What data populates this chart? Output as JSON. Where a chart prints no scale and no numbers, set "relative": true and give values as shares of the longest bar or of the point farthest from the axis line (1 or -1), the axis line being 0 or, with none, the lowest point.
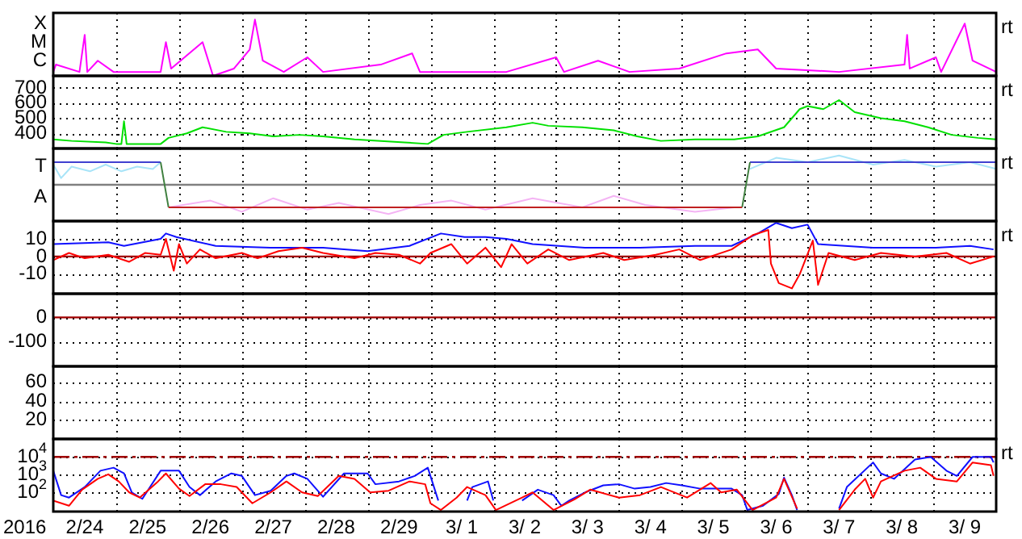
{
  "chart_data": [
    {
      "type": "line",
      "relative": true,
      "grid": "x",
      "tick_labels": "y",
      "xlim": [
        "2016-02-24",
        "2016-03-10"
      ],
      "xticks": [
        {
          "value": "2016-02-25",
          "label": null
        },
        {
          "value": "2016-02-26",
          "label": null
        },
        {
          "value": "2016-02-27",
          "label": null
        },
        {
          "value": "2016-02-28",
          "label": null
        },
        {
          "value": "2016-02-29",
          "label": null
        },
        {
          "value": "2016-03-01",
          "label": null
        },
        {
          "value": "2016-03-02",
          "label": null
        },
        {
          "value": "2016-03-03",
          "label": null
        },
        {
          "value": "2016-03-04",
          "label": null
        },
        {
          "value": "2016-03-05",
          "label": null
        },
        {
          "value": "2016-03-06",
          "label": null
        },
        {
          "value": "2016-03-07",
          "label": null
        },
        {
          "value": "2016-03-08",
          "label": null
        },
        {
          "value": "2016-03-09",
          "label": null
        }
      ],
      "annotations": [
        "X",
        "M",
        "C",
        "rt"
      ],
      "series": [
        {
          "color": "#ff00ff",
          "x": [
            "2016-02-24T00:00",
            "2016-02-24T01:00",
            "2016-02-24T10:00",
            "2016-02-24T12:00",
            "2016-02-24T13:00",
            "2016-02-24T17:00",
            "2016-02-24T23:00",
            "2016-02-25T17:00",
            "2016-02-25T19:00",
            "2016-02-25T21:00",
            "2016-02-26T09:00",
            "2016-02-26T13:00",
            "2016-02-26T21:00",
            "2016-02-27T03:00",
            "2016-02-27T05:00",
            "2016-02-27T08:00",
            "2016-02-27T16:00",
            "2016-02-28T01:00",
            "2016-02-28T07:00",
            "2016-02-29T05:00",
            "2016-02-29T17:00",
            "2016-02-29T20:00",
            "2016-03-01T21:00",
            "2016-03-02T05:00",
            "2016-03-03T00:00",
            "2016-03-03T03:00",
            "2016-03-03T16:00",
            "2016-03-04T04:00",
            "2016-03-04T23:00",
            "2016-03-05T17:00",
            "2016-03-06T05:00",
            "2016-03-06T12:00",
            "2016-03-07T12:00",
            "2016-03-08T13:00",
            "2016-03-08T14:00",
            "2016-03-08T15:00",
            "2016-03-09T01:00",
            "2016-03-09T03:00",
            "2016-03-09T12:00",
            "2016-03-09T15:00",
            "2016-03-10T00:00"
          ],
          "values": [
            0.07,
            0.2,
            0.07,
            0.73,
            0.07,
            0.27,
            0.07,
            0.07,
            0.6,
            0.13,
            0.6,
            0,
            0.13,
            0.47,
            1,
            0.27,
            0.07,
            0.33,
            0.07,
            0.2,
            0.4,
            0.07,
            0.07,
            0.07,
            0.33,
            0.07,
            0.27,
            0.07,
            0.13,
            0.4,
            0.47,
            0.13,
            0.07,
            0.2,
            0.73,
            0.13,
            0.33,
            0.07,
            0.93,
            0.27,
            0.07
          ]
        }
      ]
    },
    {
      "type": "line",
      "grid": true,
      "tick_labels": "y",
      "xlim": [
        "2016-02-24",
        "2016-03-10"
      ],
      "xticks": [
        {
          "value": "2016-02-25",
          "label": null
        },
        {
          "value": "2016-02-26",
          "label": null
        },
        {
          "value": "2016-02-27",
          "label": null
        },
        {
          "value": "2016-02-28",
          "label": null
        },
        {
          "value": "2016-02-29",
          "label": null
        },
        {
          "value": "2016-03-01",
          "label": null
        },
        {
          "value": "2016-03-02",
          "label": null
        },
        {
          "value": "2016-03-03",
          "label": null
        },
        {
          "value": "2016-03-04",
          "label": null
        },
        {
          "value": "2016-03-05",
          "label": null
        },
        {
          "value": "2016-03-06",
          "label": null
        },
        {
          "value": "2016-03-07",
          "label": null
        },
        {
          "value": "2016-03-08",
          "label": null
        },
        {
          "value": "2016-03-09",
          "label": null
        }
      ],
      "ylim": [
        300,
        780
      ],
      "yticks": [
        700,
        600,
        500,
        400
      ],
      "annotations": [
        "rt"
      ],
      "series": [
        {
          "color": "#00e000",
          "x": [
            "2016-02-24T00:00",
            "2016-02-24T07:00",
            "2016-02-24T20:00",
            "2016-02-25T00:00",
            "2016-02-25T02:00",
            "2016-02-25T03:00",
            "2016-02-25T04:00",
            "2016-02-25T17:00",
            "2016-02-25T20:00",
            "2016-02-26T03:00",
            "2016-02-26T09:00",
            "2016-02-26T18:00",
            "2016-02-27T03:00",
            "2016-02-27T12:00",
            "2016-02-27T22:00",
            "2016-02-28T07:00",
            "2016-02-28T19:00",
            "2016-02-29T14:00",
            "2016-02-29T23:00",
            "2016-03-01T05:00",
            "2016-03-01T14:00",
            "2016-03-02T05:00",
            "2016-03-02T15:00",
            "2016-03-02T21:00",
            "2016-03-03T10:00",
            "2016-03-03T22:00",
            "2016-03-04T07:00",
            "2016-03-04T16:00",
            "2016-03-05T05:00",
            "2016-03-05T20:00",
            "2016-03-06T05:00",
            "2016-03-06T15:00",
            "2016-03-06T21:00",
            "2016-03-07T00:00",
            "2016-03-07T06:00",
            "2016-03-07T12:00",
            "2016-03-07T18:00",
            "2016-03-08T04:00",
            "2016-03-08T13:00",
            "2016-03-08T22:00",
            "2016-03-09T07:00",
            "2016-03-09T17:00",
            "2016-03-10T00:00"
          ],
          "values": [
            360,
            350,
            340,
            330,
            330,
            480,
            330,
            330,
            370,
            400,
            440,
            410,
            400,
            380,
            390,
            380,
            360,
            340,
            330,
            390,
            410,
            440,
            470,
            450,
            440,
            420,
            380,
            350,
            360,
            360,
            380,
            440,
            560,
            580,
            560,
            620,
            540,
            500,
            480,
            440,
            390,
            370,
            360
          ]
        }
      ]
    },
    {
      "type": "line",
      "relative": true,
      "grid": "x",
      "tick_labels": "y",
      "xlim": [
        "2016-02-24",
        "2016-03-10"
      ],
      "xticks": [
        {
          "value": "2016-02-25",
          "label": null
        },
        {
          "value": "2016-02-26",
          "label": null
        },
        {
          "value": "2016-02-27",
          "label": null
        },
        {
          "value": "2016-02-28",
          "label": null
        },
        {
          "value": "2016-02-29",
          "label": null
        },
        {
          "value": "2016-03-01",
          "label": null
        },
        {
          "value": "2016-03-02",
          "label": null
        },
        {
          "value": "2016-03-03",
          "label": null
        },
        {
          "value": "2016-03-04",
          "label": null
        },
        {
          "value": "2016-03-05",
          "label": null
        },
        {
          "value": "2016-03-06",
          "label": null
        },
        {
          "value": "2016-03-07",
          "label": null
        },
        {
          "value": "2016-03-08",
          "label": null
        },
        {
          "value": "2016-03-09",
          "label": null
        }
      ],
      "annotations": [
        "T",
        "A",
        "rt"
      ],
      "ref_lines": [
        {
          "axis": "y",
          "value": 0,
          "color": "#808080"
        }
      ],
      "series": [
        {
          "color": "#a8e4f8",
          "x": [
            "2016-02-24T00:00",
            "2016-02-24T03:00",
            "2016-02-24T07:00",
            "2016-02-24T14:00",
            "2016-02-24T20:00",
            "2016-02-25T02:00",
            "2016-02-25T08:00",
            "2016-02-25T14:00",
            "2016-02-25T17:00",
            "2016-02-26T00:00",
            "2016-03-06T02:00",
            "2016-03-06T12:00",
            "2016-03-07T00:00",
            "2016-03-07T12:00",
            "2016-03-08T01:00",
            "2016-03-08T13:00",
            "2016-03-09T01:00",
            "2016-03-09T14:00",
            "2016-03-10T00:00"
          ],
          "values": [
            0.69,
            0.23,
            0.62,
            0.46,
            0.69,
            0.46,
            0.62,
            0.54,
            0.77,
            null,
            0.54,
            0.92,
            0.77,
            1,
            0.69,
            0.85,
            0.62,
            0.77,
            0.54
          ]
        },
        {
          "color": "#f4b4f4",
          "x": [
            "2016-02-25T20:00",
            "2016-02-26T12:00",
            "2016-02-27T00:00",
            "2016-02-27T12:00",
            "2016-02-28T01:00",
            "2016-02-28T13:00",
            "2016-02-29T08:00",
            "2016-02-29T20:00",
            "2016-03-01T08:00",
            "2016-03-01T21:00",
            "2016-03-02T15:00",
            "2016-03-03T10:00",
            "2016-03-03T22:00",
            "2016-03-04T10:00",
            "2016-03-05T05:00",
            "2016-03-05T20:00"
          ],
          "values": [
            -0.77,
            -0.54,
            -0.92,
            -0.46,
            -0.85,
            -0.62,
            -1,
            -0.69,
            -0.54,
            -0.85,
            -0.46,
            -0.77,
            -0.38,
            -0.69,
            -0.92,
            -0.77
          ]
        },
        {
          "color": "#4040d0",
          "x": [
            "2016-02-24T00:00",
            "2016-02-25T17:00",
            "2016-02-26T00:00",
            "2016-03-06T02:00",
            "2016-03-10T00:00"
          ],
          "values": [
            0.77,
            0.77,
            null,
            0.77,
            0.77
          ]
        },
        {
          "color": "#408040",
          "x": [
            "2016-02-25T17:00",
            "2016-02-25T20:00",
            "2016-03-01T00:00",
            "2016-03-05T23:00",
            "2016-03-06T02:00"
          ],
          "values": [
            0.77,
            -0.77,
            null,
            -0.77,
            0.77
          ]
        },
        {
          "color": "#c02020",
          "x": [
            "2016-02-25T20:00",
            "2016-03-05T23:00"
          ],
          "values": [
            -0.77,
            -0.77
          ]
        }
      ]
    },
    {
      "type": "line",
      "grid": true,
      "tick_labels": "y",
      "xlim": [
        "2016-02-24",
        "2016-03-10"
      ],
      "xticks": [
        {
          "value": "2016-02-25",
          "label": null
        },
        {
          "value": "2016-02-26",
          "label": null
        },
        {
          "value": "2016-02-27",
          "label": null
        },
        {
          "value": "2016-02-28",
          "label": null
        },
        {
          "value": "2016-02-29",
          "label": null
        },
        {
          "value": "2016-03-01",
          "label": null
        },
        {
          "value": "2016-03-02",
          "label": null
        },
        {
          "value": "2016-03-03",
          "label": null
        },
        {
          "value": "2016-03-04",
          "label": null
        },
        {
          "value": "2016-03-05",
          "label": null
        },
        {
          "value": "2016-03-06",
          "label": null
        },
        {
          "value": "2016-03-07",
          "label": null
        },
        {
          "value": "2016-03-08",
          "label": null
        },
        {
          "value": "2016-03-09",
          "label": null
        }
      ],
      "ylim": [
        -21,
        20
      ],
      "yticks": [
        10,
        0,
        -10
      ],
      "annotations": [
        "rt"
      ],
      "ref_lines": [
        {
          "axis": "y",
          "value": 0,
          "color": "#a00000"
        }
      ],
      "series": [
        {
          "color": "#1010ff",
          "x": [
            "2016-02-24T00:00",
            "2016-02-24T21:00",
            "2016-02-25T03:00",
            "2016-02-25T17:00",
            "2016-02-25T19:00",
            "2016-02-25T23:00",
            "2016-02-26T14:00",
            "2016-02-27T11:00",
            "2016-02-28T07:00",
            "2016-02-29T00:00",
            "2016-02-29T16:00",
            "2016-03-01T04:00",
            "2016-03-01T13:00",
            "2016-03-01T21:00",
            "2016-03-02T05:00",
            "2016-03-02T15:00",
            "2016-03-03T11:00",
            "2016-03-04T08:00",
            "2016-03-05T05:00",
            "2016-03-05T19:00",
            "2016-03-06T05:00",
            "2016-03-06T12:00",
            "2016-03-06T18:00",
            "2016-03-07T00:00",
            "2016-03-07T04:00",
            "2016-03-08T01:00",
            "2016-03-09T01:00",
            "2016-03-09T14:00",
            "2016-03-09T23:00"
          ],
          "values": [
            7,
            8,
            6,
            10,
            13,
            11,
            6,
            5,
            5,
            3,
            6,
            13,
            11,
            11,
            10,
            7,
            5,
            5,
            6,
            6,
            13,
            19,
            16,
            18,
            7,
            5,
            5,
            6,
            4
          ]
        },
        {
          "color": "#ff0000",
          "x": [
            "2016-02-24T00:00",
            "2016-02-24T06:00",
            "2016-02-24T12:00",
            "2016-02-24T21:00",
            "2016-02-25T05:00",
            "2016-02-25T11:00",
            "2016-02-25T17:00",
            "2016-02-25T19:00",
            "2016-02-25T22:00",
            "2016-02-26T00:00",
            "2016-02-26T03:00",
            "2016-02-26T08:00",
            "2016-02-26T14:00",
            "2016-02-27T00:00",
            "2016-02-27T06:00",
            "2016-02-27T14:00",
            "2016-02-27T23:00",
            "2016-02-28T07:00",
            "2016-02-28T19:00",
            "2016-02-29T03:00",
            "2016-02-29T12:00",
            "2016-02-29T20:00",
            "2016-03-01T00:00",
            "2016-03-01T08:00",
            "2016-03-01T14:00",
            "2016-03-01T21:00",
            "2016-03-02T03:00",
            "2016-03-02T07:00",
            "2016-03-02T13:00",
            "2016-03-02T21:00",
            "2016-03-03T05:00",
            "2016-03-03T18:00",
            "2016-03-04T02:00",
            "2016-03-04T14:00",
            "2016-03-04T23:00",
            "2016-03-05T07:00",
            "2016-03-05T19:00",
            "2016-03-06T03:00",
            "2016-03-06T09:00",
            "2016-03-06T10:00",
            "2016-03-06T13:00",
            "2016-03-06T18:00",
            "2016-03-06T21:00",
            "2016-03-07T02:00",
            "2016-03-07T04:00",
            "2016-03-07T08:00",
            "2016-03-07T18:00",
            "2016-03-08T04:00",
            "2016-03-08T17:00",
            "2016-03-09T05:00",
            "2016-03-09T14:00",
            "2016-03-09T23:00"
          ],
          "values": [
            -2,
            2,
            -1,
            1,
            -3,
            2,
            1,
            10,
            -8,
            7,
            -4,
            4,
            -1,
            2,
            -1,
            3,
            5,
            2,
            -1,
            2,
            1,
            -4,
            2,
            7,
            -4,
            5,
            -6,
            7,
            -4,
            4,
            -2,
            2,
            -2,
            1,
            4,
            -2,
            4,
            12,
            15,
            -4,
            -15,
            -18,
            -10,
            9,
            -16,
            2,
            -2,
            2,
            0,
            2,
            -4,
            0
          ]
        }
      ]
    },
    {
      "type": "line",
      "grid": true,
      "tick_labels": "y",
      "xlim": [
        "2016-02-24",
        "2016-03-10"
      ],
      "xticks": [
        {
          "value": "2016-02-25",
          "label": null
        },
        {
          "value": "2016-02-26",
          "label": null
        },
        {
          "value": "2016-02-27",
          "label": null
        },
        {
          "value": "2016-02-28",
          "label": null
        },
        {
          "value": "2016-02-29",
          "label": null
        },
        {
          "value": "2016-03-01",
          "label": null
        },
        {
          "value": "2016-03-02",
          "label": null
        },
        {
          "value": "2016-03-03",
          "label": null
        },
        {
          "value": "2016-03-04",
          "label": null
        },
        {
          "value": "2016-03-05",
          "label": null
        },
        {
          "value": "2016-03-06",
          "label": null
        },
        {
          "value": "2016-03-07",
          "label": null
        },
        {
          "value": "2016-03-08",
          "label": null
        },
        {
          "value": "2016-03-09",
          "label": null
        }
      ],
      "ylim": [
        -202,
        98
      ],
      "yticks": [
        0,
        -100
      ],
      "ref_lines": [
        {
          "axis": "y",
          "value": 0,
          "color": "#a00000"
        }
      ]
    },
    {
      "type": "line",
      "grid": true,
      "tick_labels": "y",
      "xlim": [
        "2016-02-24",
        "2016-03-10"
      ],
      "xticks": [
        {
          "value": "2016-02-25",
          "label": null
        },
        {
          "value": "2016-02-26",
          "label": null
        },
        {
          "value": "2016-02-27",
          "label": null
        },
        {
          "value": "2016-02-28",
          "label": null
        },
        {
          "value": "2016-02-29",
          "label": null
        },
        {
          "value": "2016-03-01",
          "label": null
        },
        {
          "value": "2016-03-02",
          "label": null
        },
        {
          "value": "2016-03-03",
          "label": null
        },
        {
          "value": "2016-03-04",
          "label": null
        },
        {
          "value": "2016-03-05",
          "label": null
        },
        {
          "value": "2016-03-06",
          "label": null
        },
        {
          "value": "2016-03-07",
          "label": null
        },
        {
          "value": "2016-03-08",
          "label": null
        },
        {
          "value": "2016-03-09",
          "label": null
        }
      ],
      "ylim": [
        0,
        77
      ],
      "yticks": [
        60,
        40,
        20
      ]
    },
    {
      "type": "line",
      "log": true,
      "grid": true,
      "xlabel": "2016",
      "xlim": [
        "2016-02-24",
        "2016-03-10"
      ],
      "xticks": [
        {
          "value": "2016-02-24T12:00",
          "label": "2/24"
        },
        {
          "value": "2016-02-25",
          "label": null
        },
        {
          "value": "2016-02-25T12:00",
          "label": "2/25"
        },
        {
          "value": "2016-02-26",
          "label": null
        },
        {
          "value": "2016-02-26T12:00",
          "label": "2/26"
        },
        {
          "value": "2016-02-27",
          "label": null
        },
        {
          "value": "2016-02-27T12:00",
          "label": "2/27"
        },
        {
          "value": "2016-02-28",
          "label": null
        },
        {
          "value": "2016-02-28T12:00",
          "label": "2/28"
        },
        {
          "value": "2016-02-29",
          "label": null
        },
        {
          "value": "2016-02-29T12:00",
          "label": "2/29"
        },
        {
          "value": "2016-03-01",
          "label": null
        },
        {
          "value": "2016-03-01T12:00",
          "label": "3/ 1"
        },
        {
          "value": "2016-03-02",
          "label": null
        },
        {
          "value": "2016-03-02T12:00",
          "label": "3/ 2"
        },
        {
          "value": "2016-03-03",
          "label": null
        },
        {
          "value": "2016-03-03T12:00",
          "label": "3/ 3"
        },
        {
          "value": "2016-03-04",
          "label": null
        },
        {
          "value": "2016-03-04T12:00",
          "label": "3/ 4"
        },
        {
          "value": "2016-03-05",
          "label": null
        },
        {
          "value": "2016-03-05T12:00",
          "label": "3/ 5"
        },
        {
          "value": "2016-03-06",
          "label": null
        },
        {
          "value": "2016-03-06T12:00",
          "label": "3/ 6"
        },
        {
          "value": "2016-03-07",
          "label": null
        },
        {
          "value": "2016-03-07T12:00",
          "label": "3/ 7"
        },
        {
          "value": "2016-03-08",
          "label": null
        },
        {
          "value": "2016-03-08T12:00",
          "label": "3/ 8"
        },
        {
          "value": "2016-03-09",
          "label": null
        },
        {
          "value": "2016-03-09T12:00",
          "label": "3/ 9"
        }
      ],
      "ylim": [
        9,
        100000
      ],
      "yticks": [
        {
          "value": 10000,
          "label": "10$^{4}$"
        },
        {
          "value": 1000,
          "label": "10$^{3}$"
        },
        {
          "value": 100,
          "label": "10$^{2}$"
        }
      ],
      "annotations": [
        "rt"
      ],
      "ref_lines": [
        {
          "axis": "y",
          "value": 10000,
          "color": "#a00000",
          "line_style": "dashed"
        }
      ],
      "series": [
        {
          "color": "#1010ff",
          "x": [
            "2016-02-24T00:00",
            "2016-02-24T03:00",
            "2016-02-24T06:00",
            "2016-02-24T12:00",
            "2016-02-24T18:00",
            "2016-02-24T23:00",
            "2016-02-25T03:00",
            "2016-02-25T06:00",
            "2016-02-25T10:00",
            "2016-02-25T17:00",
            "2016-02-26T00:00",
            "2016-02-26T04:00",
            "2016-02-26T08:00",
            "2016-02-26T14:00",
            "2016-02-26T20:00",
            "2016-02-27T00:00",
            "2016-02-27T05:00",
            "2016-02-27T11:00",
            "2016-02-27T17:00",
            "2016-02-27T20:00",
            "2016-02-28T01:00",
            "2016-02-28T07:00",
            "2016-02-28T15:00",
            "2016-02-29T00:00",
            "2016-02-29T03:00",
            "2016-02-29T12:00",
            "2016-02-29T18:00",
            "2016-02-29T23:00",
            "2016-03-01T00:00",
            "2016-03-01T03:00",
            "2016-03-01T07:00",
            "2016-03-01T14:00",
            "2016-03-01T16:00",
            "2016-03-01T22:00",
            "2016-03-02T00:00",
            "2016-03-02T04:00",
            "2016-03-02T11:00",
            "2016-03-02T17:00",
            "2016-03-02T23:00",
            "2016-03-03T02:00",
            "2016-03-03T05:00",
            "2016-03-03T11:00",
            "2016-03-03T18:00",
            "2016-03-04T00:00",
            "2016-03-04T06:00",
            "2016-03-04T12:00",
            "2016-03-04T18:00",
            "2016-03-05T00:00",
            "2016-03-05T07:00",
            "2016-03-05T13:00",
            "2016-03-05T19:00",
            "2016-03-05T23:00",
            "2016-03-06T01:00",
            "2016-03-06T07:00",
            "2016-03-06T13:00",
            "2016-03-06T15:00",
            "2016-03-06T18:00",
            "2016-03-06T20:00",
            "2016-03-07T00:00",
            "2016-03-07T12:00",
            "2016-03-07T15:00",
            "2016-03-08T01:00",
            "2016-03-08T04:00",
            "2016-03-08T09:00",
            "2016-03-08T17:00",
            "2016-03-08T23:00",
            "2016-03-09T05:00",
            "2016-03-09T09:00",
            "2016-03-09T15:00",
            "2016-03-09T22:00",
            "2016-03-09T23:00"
          ],
          "values": [
            1700,
            74,
            54,
            210,
            1700,
            2500,
            1200,
            105,
            46,
            1700,
            1700,
            210,
            74,
            430,
            1200,
            870,
            74,
            130,
            870,
            1200,
            600,
            60,
            1200,
            1200,
            300,
            430,
            870,
            2500,
            870,
            37,
            null,
            37,
            210,
            430,
            37,
            null,
            37,
            150,
            74,
            19,
            37,
            105,
            260,
            300,
            170,
            210,
            350,
            260,
            170,
            170,
            170,
            74,
            11,
            19,
            87,
            700,
            74,
            11,
            null,
            13,
            210,
            4900,
            1200,
            600,
            7100,
            10000,
            1700,
            870,
            10000,
            10000,
            4900
          ]
        },
        {
          "color": "#ff0000",
          "x": [
            "2016-02-24T00:00",
            "2016-02-24T06:00",
            "2016-02-24T11:00",
            "2016-02-24T17:00",
            "2016-02-24T21:00",
            "2016-02-25T01:00",
            "2016-02-25T05:00",
            "2016-02-25T09:00",
            "2016-02-25T16:00",
            "2016-02-25T19:00",
            "2016-02-26T00:00",
            "2016-02-26T04:00",
            "2016-02-26T10:00",
            "2016-02-26T16:00",
            "2016-02-26T22:00",
            "2016-02-27T04:00",
            "2016-02-27T11:00",
            "2016-02-27T17:00",
            "2016-02-27T23:00",
            "2016-02-28T05:00",
            "2016-02-28T13:00",
            "2016-02-28T19:00",
            "2016-02-29T01:00",
            "2016-02-29T08:00",
            "2016-02-29T16:00",
            "2016-02-29T22:00",
            "2016-03-01T00:00",
            "2016-03-01T04:00",
            "2016-03-01T10:00",
            "2016-03-01T14:00",
            "2016-03-01T21:00",
            "2016-03-02T01:00",
            "2016-03-02T11:00",
            "2016-03-02T15:00",
            "2016-03-02T23:00",
            "2016-03-03T07:00",
            "2016-03-03T13:00",
            "2016-03-04T00:00",
            "2016-03-04T08:00",
            "2016-03-04T16:00",
            "2016-03-05T02:00",
            "2016-03-05T11:00",
            "2016-03-05T15:00",
            "2016-03-05T21:00",
            "2016-03-06T03:00",
            "2016-03-06T12:00",
            "2016-03-06T15:00",
            "2016-03-06T20:00",
            "2016-03-07T00:00",
            "2016-03-07T12:00",
            "2016-03-07T18:00",
            "2016-03-07T22:00",
            "2016-03-08T01:00",
            "2016-03-08T04:00",
            "2016-03-08T13:00",
            "2016-03-08T19:00",
            "2016-03-09T01:00",
            "2016-03-09T09:00",
            "2016-03-09T15:00",
            "2016-03-09T22:00",
            "2016-03-09T23:00"
          ],
          "values": [
            37,
            19,
            150,
            600,
            1070,
            430,
            105,
            54,
            430,
            1200,
            170,
            66,
            300,
            300,
            210,
            26,
            105,
            430,
            105,
            66,
            870,
            600,
            105,
            130,
            430,
            300,
            26,
            11,
            54,
            210,
            74,
            11,
            54,
            105,
            11,
            43,
            150,
            54,
            74,
            210,
            54,
            350,
            105,
            150,
            11,
            54,
            600,
            13,
            null,
            11,
            150,
            600,
            54,
            430,
            1700,
            2500,
            600,
            430,
            4900,
            3500,
            870
          ]
        }
      ]
    }
  ]
}
